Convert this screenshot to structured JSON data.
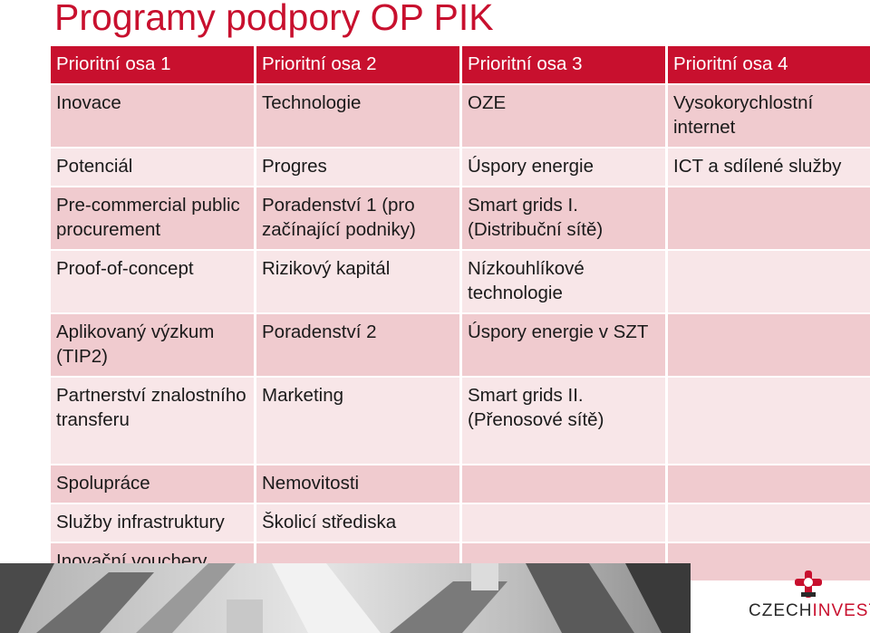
{
  "title": "Programy podpory OP PIK",
  "headers": [
    "Prioritní osa 1",
    "Prioritní osa 2",
    "Prioritní osa 3",
    "Prioritní osa 4"
  ],
  "rows": [
    [
      "Inovace",
      "Technologie",
      "OZE",
      "Vysokorychlostní internet"
    ],
    [
      "Potenciál",
      "Progres",
      "Úspory energie",
      "ICT a sdílené služby"
    ],
    [
      "Pre-commercial public procurement",
      "Poradenství 1 (pro začínající podniky)",
      "Smart grids I. (Distribuční sítě)",
      ""
    ],
    [
      "Proof-of-concept",
      "Rizikový kapitál",
      "Nízkouhlíkové technologie",
      ""
    ],
    [
      "Aplikovaný výzkum (TIP2)",
      "Poradenství 2",
      "Úspory energie v SZT",
      ""
    ],
    [
      "Partnerství znalostního transferu",
      "Marketing",
      "Smart grids II. (Přenosové sítě)",
      ""
    ],
    [
      "Spolupráce",
      "Nemovitosti",
      "",
      ""
    ],
    [
      "Služby infrastruktury",
      "Školicí střediska",
      "",
      ""
    ],
    [
      "Inovační vouchery",
      "",
      "",
      ""
    ]
  ],
  "logo": {
    "part1": "CZECH",
    "part2": "INVEST",
    "icon": "czechinvest-cross-logo-icon"
  },
  "colors": {
    "accent": "#c8102e",
    "row_dark": "#f0cbcf",
    "row_light": "#f8e6e8"
  }
}
